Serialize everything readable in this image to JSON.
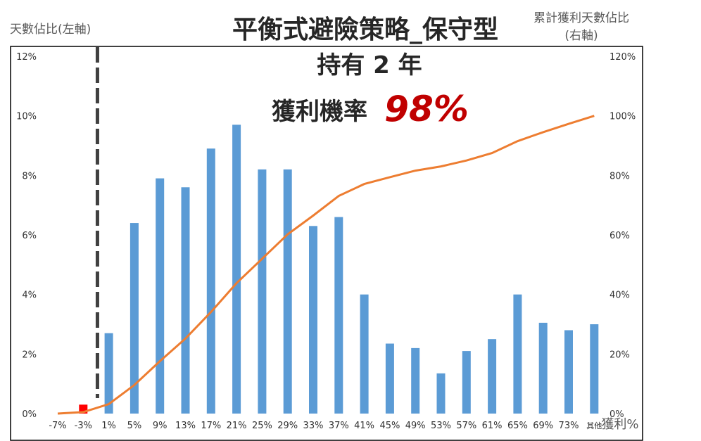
{
  "chart_data": {
    "type": "bar",
    "title": "平衡式避險策略_保守型",
    "subtitle": "持有 2 年",
    "annotation_label": "獲利機率",
    "annotation_value": "98%",
    "ylabel": "天數佔比(左軸)",
    "y2label_line1": "累計獲利天數佔比",
    "y2label_line2": "(右軸)",
    "xlabel": "獲利%",
    "ylim": [
      0,
      12
    ],
    "y2lim": [
      0,
      120
    ],
    "yticks": [
      "0%",
      "2%",
      "4%",
      "6%",
      "8%",
      "10%",
      "12%"
    ],
    "y2ticks": [
      "0%",
      "20%",
      "40%",
      "60%",
      "80%",
      "100%",
      "120%"
    ],
    "categories": [
      "-7%",
      "-3%",
      "1%",
      "5%",
      "9%",
      "13%",
      "17%",
      "21%",
      "25%",
      "29%",
      "33%",
      "37%",
      "41%",
      "45%",
      "49%",
      "53%",
      "57%",
      "61%",
      "65%",
      "69%",
      "73%",
      "其他"
    ],
    "series": [
      {
        "type": "bar",
        "axis": "left",
        "values": [
          0,
          0.3,
          2.7,
          6.4,
          7.9,
          7.6,
          8.9,
          9.7,
          8.2,
          8.2,
          6.3,
          6.6,
          4.0,
          2.35,
          2.2,
          1.35,
          2.1,
          2.5,
          4.0,
          3.05,
          2.8,
          3.0
        ]
      },
      {
        "type": "line",
        "axis": "right",
        "values": [
          0,
          0.5,
          3.2,
          9.6,
          17.6,
          25.2,
          34.1,
          43.8,
          52.0,
          60.2,
          66.5,
          73.1,
          77.1,
          79.4,
          81.6,
          83.0,
          85.0,
          87.5,
          91.5,
          94.5,
          97.3,
          100
        ]
      }
    ],
    "colors": {
      "bars": "#5b9bd5",
      "loss_bar": "#ff0000",
      "line": "#ed7d31",
      "marker": "#404040",
      "annotation": "#c00000",
      "title": "#262626"
    },
    "reference_line": {
      "type": "vertical-dashed",
      "between": [
        "-3%",
        "1%"
      ]
    },
    "grid": false
  }
}
